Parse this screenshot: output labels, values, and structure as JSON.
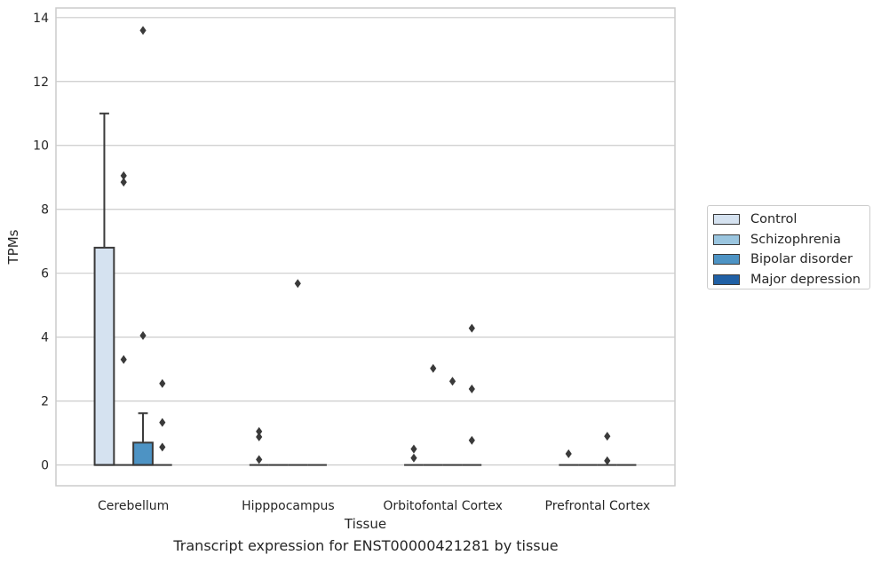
{
  "chart_data": {
    "type": "box",
    "caption": "Transcript expression for ENST00000421281 by tissue",
    "xlabel": "Tissue",
    "ylabel": "TPMs",
    "ylim": [
      -0.65,
      14.3
    ],
    "yticks": [
      0,
      2,
      4,
      6,
      8,
      10,
      12,
      14
    ],
    "grid": true,
    "legend_position": "right",
    "categories": [
      "Cerebellum",
      "Hipppocampus",
      "Orbitofontal Cortex",
      "Prefrontal Cortex"
    ],
    "series": [
      {
        "name": "Control",
        "color": "#d5e2f0"
      },
      {
        "name": "Schizophrenia",
        "color": "#9ac5df"
      },
      {
        "name": "Bipolar disorder",
        "color": "#4d93c4"
      },
      {
        "name": "Major depression",
        "color": "#2060a5"
      }
    ],
    "boxes": [
      {
        "category": 0,
        "series": 0,
        "q1": 0,
        "median": 0,
        "q3": 6.8,
        "whisker_low": 0,
        "whisker_high": 11.0,
        "outliers": []
      },
      {
        "category": 0,
        "series": 1,
        "q1": 0,
        "median": 0,
        "q3": 0,
        "whisker_low": 0,
        "whisker_high": 0,
        "outliers": [
          9.05,
          8.85,
          3.3
        ]
      },
      {
        "category": 0,
        "series": 2,
        "q1": 0,
        "median": 0,
        "q3": 0.7,
        "whisker_low": 0,
        "whisker_high": 1.62,
        "outliers": [
          13.6,
          4.05
        ]
      },
      {
        "category": 0,
        "series": 3,
        "q1": 0,
        "median": 0,
        "q3": 0,
        "whisker_low": 0,
        "whisker_high": 0,
        "outliers": [
          2.55,
          1.33,
          0.56
        ]
      },
      {
        "category": 1,
        "series": 0,
        "q1": 0,
        "median": 0,
        "q3": 0,
        "whisker_low": 0,
        "whisker_high": 0,
        "outliers": [
          1.05,
          0.88,
          0.17
        ]
      },
      {
        "category": 1,
        "series": 1,
        "q1": 0,
        "median": 0,
        "q3": 0,
        "whisker_low": 0,
        "whisker_high": 0,
        "outliers": []
      },
      {
        "category": 1,
        "series": 2,
        "q1": 0,
        "median": 0,
        "q3": 0,
        "whisker_low": 0,
        "whisker_high": 0,
        "outliers": [
          5.68
        ]
      },
      {
        "category": 1,
        "series": 3,
        "q1": 0,
        "median": 0,
        "q3": 0,
        "whisker_low": 0,
        "whisker_high": 0,
        "outliers": []
      },
      {
        "category": 2,
        "series": 0,
        "q1": 0,
        "median": 0,
        "q3": 0,
        "whisker_low": 0,
        "whisker_high": 0,
        "outliers": [
          0.5,
          0.22
        ]
      },
      {
        "category": 2,
        "series": 1,
        "q1": 0,
        "median": 0,
        "q3": 0,
        "whisker_low": 0,
        "whisker_high": 0,
        "outliers": [
          3.02
        ]
      },
      {
        "category": 2,
        "series": 2,
        "q1": 0,
        "median": 0,
        "q3": 0,
        "whisker_low": 0,
        "whisker_high": 0,
        "outliers": [
          2.62
        ]
      },
      {
        "category": 2,
        "series": 3,
        "q1": 0,
        "median": 0,
        "q3": 0,
        "whisker_low": 0,
        "whisker_high": 0,
        "outliers": [
          4.28,
          2.38,
          0.77
        ]
      },
      {
        "category": 3,
        "series": 0,
        "q1": 0,
        "median": 0,
        "q3": 0,
        "whisker_low": 0,
        "whisker_high": 0,
        "outliers": [
          0.35
        ]
      },
      {
        "category": 3,
        "series": 1,
        "q1": 0,
        "median": 0,
        "q3": 0,
        "whisker_low": 0,
        "whisker_high": 0,
        "outliers": []
      },
      {
        "category": 3,
        "series": 2,
        "q1": 0,
        "median": 0,
        "q3": 0,
        "whisker_low": 0,
        "whisker_high": 0,
        "outliers": [
          0.9,
          0.13
        ]
      },
      {
        "category": 3,
        "series": 3,
        "q1": 0,
        "median": 0,
        "q3": 0,
        "whisker_low": 0,
        "whisker_high": 0,
        "outliers": []
      }
    ]
  }
}
